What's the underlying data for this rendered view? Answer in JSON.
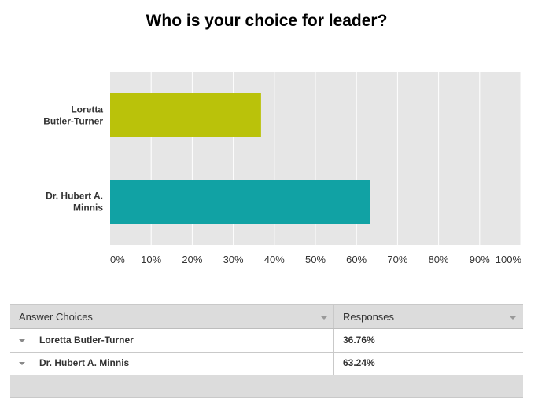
{
  "chart_data": {
    "type": "bar",
    "orientation": "horizontal",
    "title": "Who is your choice for leader?",
    "categories": [
      "Loretta Butler-Turner",
      "Dr. Hubert A. Minnis"
    ],
    "category_label_lines": [
      [
        "Loretta",
        "Butler-Turner"
      ],
      [
        "Dr. Hubert A.",
        "Minnis"
      ]
    ],
    "values": [
      36.76,
      63.24
    ],
    "xlim": [
      0,
      100
    ],
    "x_ticks": [
      "0%",
      "10%",
      "20%",
      "30%",
      "40%",
      "50%",
      "60%",
      "70%",
      "80%",
      "90%",
      "100%"
    ],
    "bar_colors": [
      "#bac20a",
      "#11a2a4"
    ],
    "grid": true,
    "plot_background": "#e6e6e6"
  },
  "table": {
    "header_choices": "Answer Choices",
    "header_responses": "Responses",
    "rows": [
      {
        "choice": "Loretta Butler-Turner",
        "response": "36.76%"
      },
      {
        "choice": "Dr. Hubert A. Minnis",
        "response": "63.24%"
      }
    ]
  }
}
